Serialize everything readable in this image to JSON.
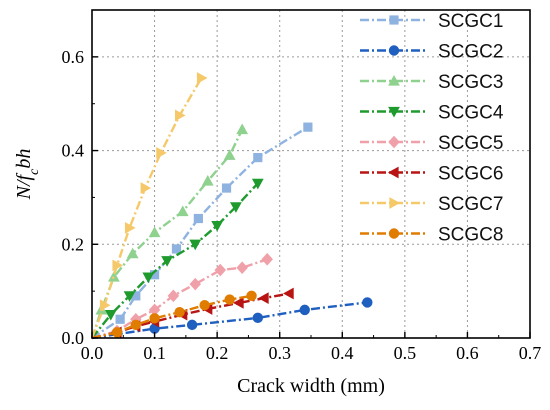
{
  "chart_data": {
    "type": "line",
    "xlabel": "Crack width (mm)",
    "ylabel": "N/f_c bh",
    "ylabel_parts": [
      "N/",
      "f",
      "c",
      "bh"
    ],
    "xlim": [
      0,
      0.7
    ],
    "ylim": [
      0,
      0.7
    ],
    "x_ticks": [
      "0.0",
      "0.1",
      "0.2",
      "0.3",
      "0.4",
      "0.5",
      "0.6",
      "0.7"
    ],
    "y_ticks": [
      "0.0",
      "0.2",
      "0.4",
      "0.6"
    ],
    "grid": true,
    "legend_position": "top-right",
    "series": [
      {
        "name": "SCGC1",
        "color": "#8fb3e0",
        "marker": "square",
        "points": [
          [
            0,
            0
          ],
          [
            0.045,
            0.04
          ],
          [
            0.07,
            0.09
          ],
          [
            0.1,
            0.135
          ],
          [
            0.135,
            0.19
          ],
          [
            0.17,
            0.255
          ],
          [
            0.215,
            0.32
          ],
          [
            0.265,
            0.385
          ],
          [
            0.345,
            0.45
          ]
        ]
      },
      {
        "name": "SCGC2",
        "color": "#1f5fbf",
        "marker": "circle",
        "points": [
          [
            0,
            0
          ],
          [
            0.1,
            0.02
          ],
          [
            0.16,
            0.028
          ],
          [
            0.265,
            0.043
          ],
          [
            0.34,
            0.06
          ],
          [
            0.44,
            0.076
          ]
        ]
      },
      {
        "name": "SCGC3",
        "color": "#8fd18f",
        "marker": "triangle-up",
        "points": [
          [
            0,
            0
          ],
          [
            0.015,
            0.06
          ],
          [
            0.035,
            0.13
          ],
          [
            0.065,
            0.18
          ],
          [
            0.1,
            0.225
          ],
          [
            0.145,
            0.27
          ],
          [
            0.185,
            0.335
          ],
          [
            0.22,
            0.39
          ],
          [
            0.24,
            0.445
          ]
        ]
      },
      {
        "name": "SCGC4",
        "color": "#1f9b2e",
        "marker": "triangle-down",
        "points": [
          [
            0,
            0
          ],
          [
            0.03,
            0.05
          ],
          [
            0.06,
            0.09
          ],
          [
            0.09,
            0.13
          ],
          [
            0.12,
            0.165
          ],
          [
            0.165,
            0.2
          ],
          [
            0.2,
            0.24
          ],
          [
            0.23,
            0.28
          ],
          [
            0.265,
            0.33
          ]
        ]
      },
      {
        "name": "SCGC5",
        "color": "#f0a0a8",
        "marker": "diamond",
        "points": [
          [
            0,
            0
          ],
          [
            0.04,
            0.015
          ],
          [
            0.07,
            0.04
          ],
          [
            0.1,
            0.06
          ],
          [
            0.13,
            0.09
          ],
          [
            0.165,
            0.115
          ],
          [
            0.205,
            0.145
          ],
          [
            0.24,
            0.15
          ],
          [
            0.28,
            0.168
          ]
        ]
      },
      {
        "name": "SCGC6",
        "color": "#b81414",
        "marker": "triangle-left",
        "points": [
          [
            0,
            0
          ],
          [
            0.04,
            0.012
          ],
          [
            0.07,
            0.025
          ],
          [
            0.1,
            0.035
          ],
          [
            0.145,
            0.05
          ],
          [
            0.185,
            0.062
          ],
          [
            0.235,
            0.075
          ],
          [
            0.275,
            0.085
          ],
          [
            0.315,
            0.095
          ]
        ]
      },
      {
        "name": "SCGC7",
        "color": "#f5c96a",
        "marker": "triangle-right",
        "points": [
          [
            0,
            0
          ],
          [
            0.02,
            0.07
          ],
          [
            0.04,
            0.155
          ],
          [
            0.06,
            0.235
          ],
          [
            0.085,
            0.32
          ],
          [
            0.11,
            0.395
          ],
          [
            0.14,
            0.475
          ],
          [
            0.175,
            0.555
          ]
        ]
      },
      {
        "name": "SCGC8",
        "color": "#e07c00",
        "marker": "circle",
        "points": [
          [
            0,
            0
          ],
          [
            0.04,
            0.012
          ],
          [
            0.07,
            0.028
          ],
          [
            0.1,
            0.042
          ],
          [
            0.14,
            0.055
          ],
          [
            0.18,
            0.07
          ],
          [
            0.22,
            0.082
          ],
          [
            0.255,
            0.09
          ]
        ]
      }
    ]
  }
}
